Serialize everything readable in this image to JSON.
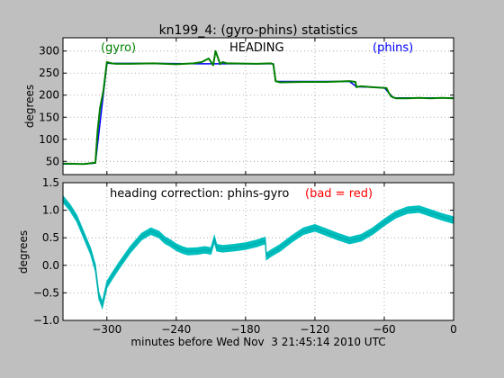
{
  "figure": {
    "title": "kn199_4: (gyro-phins) statistics",
    "xlabel": "minutes before Wed Nov  3 21:45:14 2010 UTC"
  },
  "colors": {
    "background": "#bfbfbf",
    "axes": "#ffffff",
    "gyro": "#008000",
    "phins": "#0000ff",
    "correction": "#00bfbf",
    "bad": "#ff0000",
    "grid": "#999999"
  },
  "chart_data": [
    {
      "type": "line",
      "title": "",
      "annotations": [
        {
          "text": "(gyro)",
          "color": "#008000"
        },
        {
          "text": "HEADING",
          "color": "#000000"
        },
        {
          "text": "(phins)",
          "color": "#0000ff"
        }
      ],
      "xlabel": "",
      "ylabel": "degrees",
      "xlim": [
        -338,
        0
      ],
      "ylim": [
        20,
        330
      ],
      "xticks": [
        -300,
        -240,
        -180,
        -120,
        -60,
        0
      ],
      "yticks": [
        50,
        100,
        150,
        200,
        250,
        300
      ],
      "xtick_labels_shown": false,
      "grid": true,
      "series": [
        {
          "name": "gyro",
          "color": "#008000",
          "x": [
            -338,
            -320,
            -310,
            -308,
            -306,
            -303,
            -300,
            -296,
            -292,
            -280,
            -260,
            -240,
            -225,
            -218,
            -212,
            -208,
            -206,
            -204,
            -202,
            -200,
            -196,
            -170,
            -158,
            -156,
            -154,
            -150,
            -130,
            -110,
            -90,
            -85,
            -84,
            -83,
            -80,
            -70,
            -58,
            -56,
            -54,
            -52,
            -50,
            -40,
            -30,
            -20,
            -10,
            0
          ],
          "y": [
            45,
            44,
            47,
            120,
            170,
            210,
            275,
            272,
            271,
            271,
            272,
            270,
            272,
            275,
            283,
            268,
            300,
            285,
            270,
            275,
            272,
            271,
            272,
            270,
            232,
            229,
            230,
            230,
            232,
            230,
            218,
            219,
            220,
            218,
            216,
            205,
            197,
            195,
            193,
            193,
            194,
            193,
            194,
            193
          ]
        },
        {
          "name": "phins",
          "color": "#0000ff",
          "x": [
            -338,
            -320,
            -310,
            -300,
            -260,
            -220,
            -200,
            -160,
            -156,
            -154,
            -120,
            -90,
            -84,
            -60,
            -56,
            -52,
            -30,
            0
          ],
          "y": [
            44,
            44,
            46,
            272,
            272,
            271,
            271,
            271,
            271,
            231,
            231,
            231,
            219,
            217,
            205,
            194,
            194,
            194
          ]
        }
      ]
    },
    {
      "type": "line",
      "title": "",
      "annotations": [
        {
          "text": "heading correction: phins-gyro",
          "color": "#000000"
        },
        {
          "text": "(bad = red)",
          "color": "#ff0000"
        }
      ],
      "xlabel": "minutes before Wed Nov  3 21:45:14 2010 UTC",
      "ylabel": "degrees",
      "xlim": [
        -338,
        0
      ],
      "ylim": [
        -1.0,
        1.5
      ],
      "xticks": [
        -300,
        -240,
        -180,
        -120,
        -60,
        0
      ],
      "xtick_labels": [
        "−300",
        "−240",
        "−180",
        "−120",
        "−60",
        "0"
      ],
      "yticks": [
        -1.0,
        -0.5,
        0.0,
        0.5,
        1.0,
        1.5
      ],
      "ytick_labels": [
        "−1.0",
        "−0.5",
        "0.0",
        "0.5",
        "1.0",
        "1.5"
      ],
      "grid": true,
      "series": [
        {
          "name": "phins-gyro",
          "color": "#00bfbf",
          "band_half_width": 0.06,
          "x": [
            -338,
            -332,
            -326,
            -320,
            -314,
            -310,
            -307,
            -304,
            -300,
            -295,
            -290,
            -280,
            -270,
            -262,
            -255,
            -250,
            -245,
            -240,
            -235,
            -230,
            -222,
            -215,
            -210,
            -207,
            -205,
            -200,
            -190,
            -180,
            -170,
            -163,
            -162,
            -158,
            -150,
            -140,
            -130,
            -120,
            -110,
            -100,
            -90,
            -80,
            -70,
            -60,
            -50,
            -40,
            -30,
            -20,
            -10,
            0
          ],
          "y": [
            1.2,
            1.05,
            0.85,
            0.55,
            0.25,
            -0.05,
            -0.55,
            -0.72,
            -0.35,
            -0.18,
            -0.02,
            0.28,
            0.52,
            0.62,
            0.56,
            0.46,
            0.4,
            0.33,
            0.28,
            0.25,
            0.26,
            0.28,
            0.26,
            0.48,
            0.32,
            0.3,
            0.32,
            0.35,
            0.4,
            0.45,
            0.16,
            0.22,
            0.32,
            0.48,
            0.62,
            0.68,
            0.6,
            0.52,
            0.45,
            0.5,
            0.62,
            0.78,
            0.92,
            1.0,
            1.02,
            0.95,
            0.88,
            0.82
          ]
        }
      ]
    }
  ]
}
